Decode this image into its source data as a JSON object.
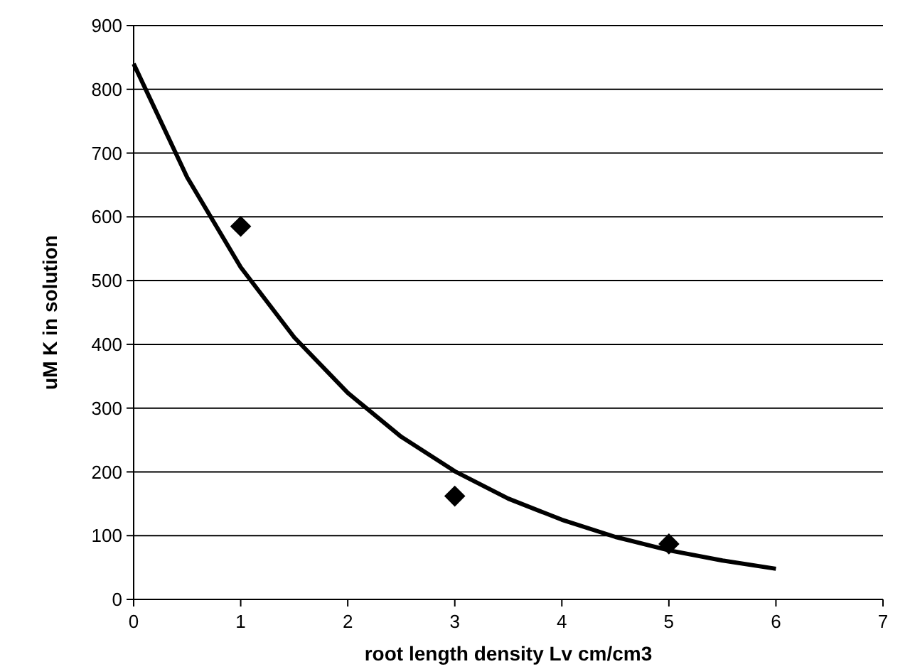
{
  "chart_data": {
    "type": "scatter",
    "xlabel": "root length density Lv cm/cm3",
    "ylabel": "uM K in solution",
    "xlim": [
      0,
      7
    ],
    "xticks": [
      0,
      1,
      2,
      3,
      4,
      5,
      6,
      7
    ],
    "ylim": [
      0,
      900
    ],
    "yticks": [
      0,
      100,
      200,
      300,
      400,
      500,
      600,
      700,
      800,
      900
    ],
    "grid": "y",
    "series": [
      {
        "color": "#000000",
        "marker": "diamond",
        "x": [
          1,
          3,
          5
        ],
        "values": [
          585,
          162,
          87
        ]
      },
      {
        "type": "line",
        "color": "#000000",
        "marker": "none",
        "line_style": "solid",
        "x": [
          0,
          0.5,
          1,
          1.5,
          2,
          2.5,
          3,
          3.5,
          4,
          4.5,
          5,
          5.5,
          6
        ],
        "values": [
          840,
          662,
          521,
          411,
          324,
          255,
          201,
          158,
          125,
          98,
          77,
          61,
          48
        ]
      }
    ]
  }
}
